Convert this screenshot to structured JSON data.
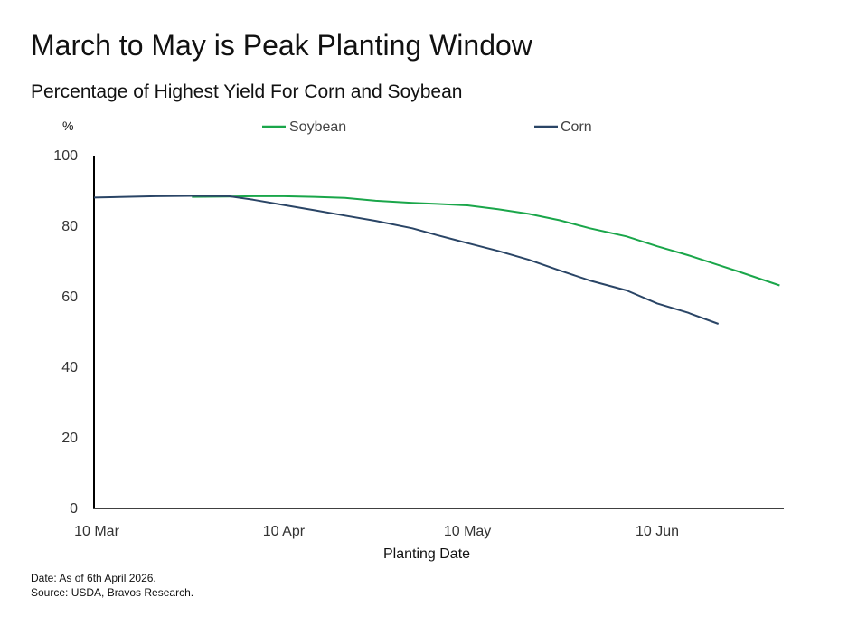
{
  "title": "March to May is Peak Planting Window",
  "subtitle": "Percentage of Highest Yield For Corn and Soybean",
  "footnotes": {
    "date": "Date: As of 6th April 2026.",
    "source": "Source: USDA, Bravos Research."
  },
  "colors": {
    "soybean": "#1aa64a",
    "corn": "#2a4566",
    "axis": "#000000"
  },
  "chart_data": {
    "type": "line",
    "title": "Percentage of Highest Yield For Corn and Soybean",
    "xlabel": "Planting Date",
    "ylabel": "%",
    "ylim": [
      0,
      100
    ],
    "y_ticks": [
      0,
      20,
      40,
      60,
      80,
      100
    ],
    "x_tick_labels": [
      "10 Mar",
      "10 Apr",
      "10 May",
      "10 Jun"
    ],
    "x_tick_dates": [
      "03-10",
      "04-10",
      "05-10",
      "06-10"
    ],
    "xlim": [
      "03-10",
      "06-30"
    ],
    "grid": false,
    "legend_position": "top",
    "series": [
      {
        "name": "Soybean",
        "color": "#1aa64a",
        "x": [
          "03-26",
          "04-01",
          "04-05",
          "04-10",
          "04-15",
          "04-20",
          "04-25",
          "05-01",
          "05-05",
          "05-10",
          "05-15",
          "05-20",
          "05-25",
          "05-30",
          "06-05",
          "06-10",
          "06-15",
          "06-20",
          "06-23",
          "06-30"
        ],
        "y": [
          88.3,
          88.4,
          88.5,
          88.5,
          88.3,
          88.0,
          87.2,
          86.6,
          86.3,
          85.9,
          84.8,
          83.5,
          81.7,
          79.4,
          77.1,
          74.3,
          71.8,
          69.0,
          67.3,
          63.2
        ]
      },
      {
        "name": "Corn",
        "color": "#2a4566",
        "x": [
          "03-10",
          "03-15",
          "03-20",
          "03-26",
          "04-01",
          "04-05",
          "04-10",
          "04-15",
          "04-20",
          "04-25",
          "05-01",
          "05-05",
          "05-10",
          "05-15",
          "05-20",
          "05-25",
          "05-30",
          "06-05",
          "06-10",
          "06-15",
          "06-20"
        ],
        "y": [
          88.1,
          88.3,
          88.5,
          88.6,
          88.5,
          87.5,
          86.0,
          84.5,
          83.0,
          81.5,
          79.4,
          77.5,
          75.2,
          73.0,
          70.5,
          67.5,
          64.6,
          61.8,
          58.1,
          55.5,
          52.3
        ]
      }
    ]
  }
}
